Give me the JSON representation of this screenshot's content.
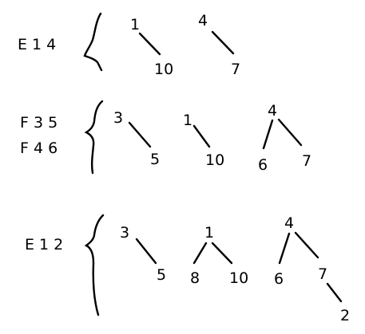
{
  "groups": [
    {
      "ops": [
        "E 1 4"
      ],
      "trees": [
        {
          "nodes": [
            "1",
            "10"
          ],
          "edges": [
            [
              0,
              1
            ]
          ]
        },
        {
          "nodes": [
            "4",
            "7"
          ],
          "edges": [
            [
              0,
              1
            ]
          ]
        }
      ]
    },
    {
      "ops": [
        "F 3 5",
        "F 4 6"
      ],
      "trees": [
        {
          "nodes": [
            "3",
            "5"
          ],
          "edges": [
            [
              0,
              1
            ]
          ]
        },
        {
          "nodes": [
            "1",
            "10"
          ],
          "edges": [
            [
              0,
              1
            ]
          ]
        },
        {
          "nodes": [
            "4",
            "6",
            "7"
          ],
          "edges": [
            [
              0,
              1
            ],
            [
              0,
              2
            ]
          ]
        }
      ]
    },
    {
      "ops": [
        "E 1 2"
      ],
      "trees": [
        {
          "nodes": [
            "3",
            "5"
          ],
          "edges": [
            [
              0,
              1
            ]
          ]
        },
        {
          "nodes": [
            "1",
            "8",
            "10"
          ],
          "edges": [
            [
              0,
              1
            ],
            [
              0,
              2
            ]
          ]
        },
        {
          "nodes": [
            "4",
            "6",
            "7",
            "2"
          ],
          "edges": [
            [
              0,
              1
            ],
            [
              0,
              2
            ],
            [
              2,
              3
            ]
          ]
        }
      ]
    }
  ]
}
